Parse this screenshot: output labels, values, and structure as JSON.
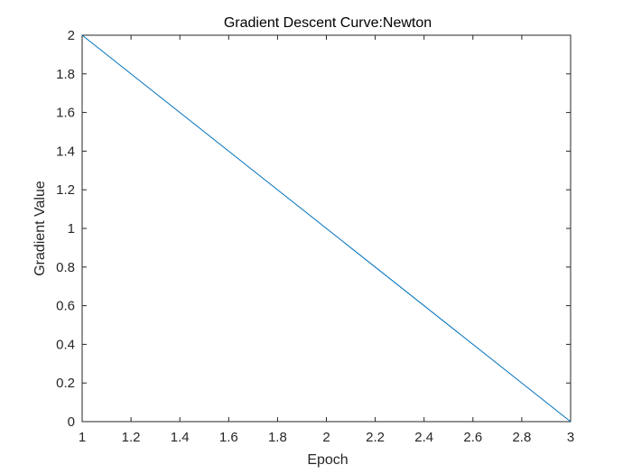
{
  "chart_data": {
    "type": "line",
    "title": "Gradient Descent Curve:Newton",
    "xlabel": "Epoch",
    "ylabel": "Gradient Value",
    "xlim": [
      1,
      3
    ],
    "ylim": [
      0,
      2
    ],
    "xticks": [
      1,
      1.2,
      1.4,
      1.6,
      1.8,
      2,
      2.2,
      2.4,
      2.6,
      2.8,
      3
    ],
    "yticks": [
      0,
      0.2,
      0.4,
      0.6,
      0.8,
      1,
      1.2,
      1.4,
      1.6,
      1.8,
      2
    ],
    "xtick_labels": [
      "1",
      "1.2",
      "1.4",
      "1.6",
      "1.8",
      "2",
      "2.2",
      "2.4",
      "2.6",
      "2.8",
      "3"
    ],
    "ytick_labels": [
      "0",
      "0.2",
      "0.4",
      "0.6",
      "0.8",
      "1",
      "1.2",
      "1.4",
      "1.6",
      "1.8",
      "2"
    ],
    "grid": false,
    "box": true,
    "series": [
      {
        "x": [
          1,
          3
        ],
        "values": [
          2,
          0
        ],
        "color": "#0072BD"
      }
    ]
  }
}
